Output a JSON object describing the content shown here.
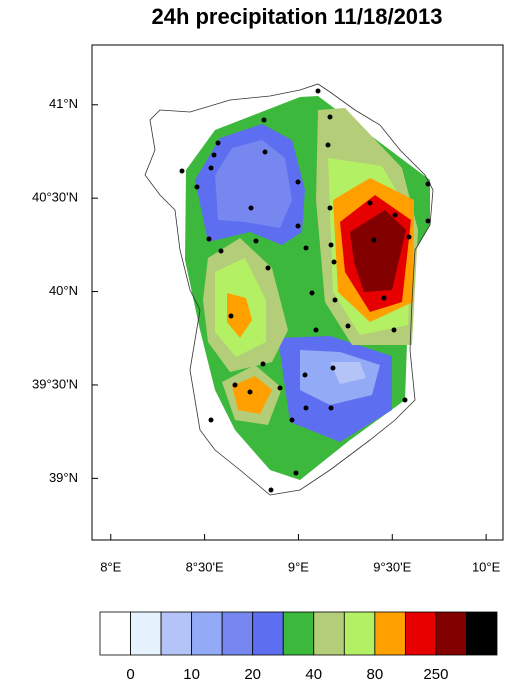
{
  "title": "24h precipitation 11/18/2013",
  "map": {
    "xlim": [
      7.9,
      10.09
    ],
    "ylim": [
      38.67,
      41.32
    ],
    "xticks": [
      {
        "value": 8,
        "label": "8°E"
      },
      {
        "value": 8.5,
        "label": "8°30'E"
      },
      {
        "value": 9,
        "label": "9°E"
      },
      {
        "value": 9.5,
        "label": "9°30'E"
      },
      {
        "value": 10,
        "label": "10°E"
      }
    ],
    "yticks": [
      {
        "value": 39,
        "label": "39°N"
      },
      {
        "value": 39.5,
        "label": "39°30'N"
      },
      {
        "value": 40,
        "label": "40°N"
      },
      {
        "value": 40.5,
        "label": "40°30'N"
      },
      {
        "value": 41,
        "label": "41°N"
      }
    ]
  },
  "colorbar": {
    "colors": [
      "#ffffff",
      "#e6f2fd",
      "#b4c4f6",
      "#93aaf7",
      "#7687f0",
      "#5e6ef0",
      "#3cb83c",
      "#b4cd78",
      "#b4f064",
      "#ffa000",
      "#e60000",
      "#820000",
      "#000000"
    ],
    "labels": [
      0,
      10,
      20,
      40,
      80,
      250
    ]
  }
}
